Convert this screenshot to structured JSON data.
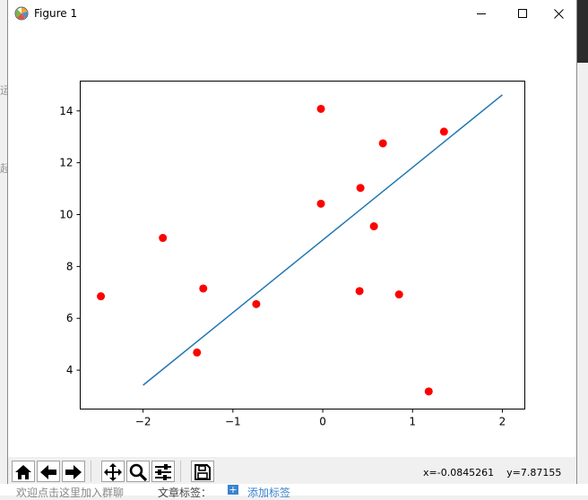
{
  "window": {
    "title": "Figure 1",
    "icon": "matplotlib-icon",
    "controls": {
      "minimize": "minimize-icon",
      "maximize": "maximize-icon",
      "close": "close-icon"
    }
  },
  "chart_data": {
    "type": "scatter",
    "title": "",
    "xlabel": "",
    "ylabel": "",
    "xlim": [
      -2.7,
      2.25
    ],
    "ylim": [
      2.5,
      15.15
    ],
    "xticks": [
      -2,
      -1,
      0,
      1,
      2
    ],
    "xtick_labels": [
      "−2",
      "−1",
      "0",
      "1",
      "2"
    ],
    "yticks": [
      4,
      6,
      8,
      10,
      12,
      14
    ],
    "ytick_labels": [
      "4",
      "6",
      "8",
      "10",
      "12",
      "14"
    ],
    "grid": false,
    "legend": false,
    "series": [
      {
        "kind": "points",
        "color": "#ff0000",
        "x": [
          -2.47,
          -1.78,
          -1.33,
          -1.4,
          -0.74,
          -0.02,
          -0.02,
          0.42,
          0.41,
          0.57,
          0.67,
          0.85,
          1.18,
          1.35
        ],
        "y": [
          6.85,
          9.1,
          7.15,
          4.68,
          6.55,
          14.08,
          10.42,
          11.03,
          7.05,
          9.55,
          12.75,
          6.92,
          3.18,
          13.2
        ]
      },
      {
        "kind": "line",
        "color": "#1f77b4",
        "x": [
          -2.0,
          2.0
        ],
        "y": [
          3.42,
          14.62
        ]
      }
    ]
  },
  "toolbar": {
    "buttons": [
      {
        "name": "home-button",
        "icon": "home-icon"
      },
      {
        "name": "back-button",
        "icon": "back-arrow-icon"
      },
      {
        "name": "forward-button",
        "icon": "forward-arrow-icon"
      },
      {
        "name": "pan-button",
        "icon": "pan-icon"
      },
      {
        "name": "zoom-button",
        "icon": "magnifier-icon"
      },
      {
        "name": "configure-subplots-button",
        "icon": "sliders-icon"
      },
      {
        "name": "save-button",
        "icon": "floppy-disk-icon"
      }
    ],
    "coords_text": "x=-0.0845261    y=7.87155"
  },
  "background": {
    "bottom_left_text": "欢迎点击这里加入群聊",
    "bottom_tag_label": "文章标签：",
    "bottom_add_tag": "添加标签",
    "side_frag_1": "运",
    "side_frag_2": "起"
  }
}
